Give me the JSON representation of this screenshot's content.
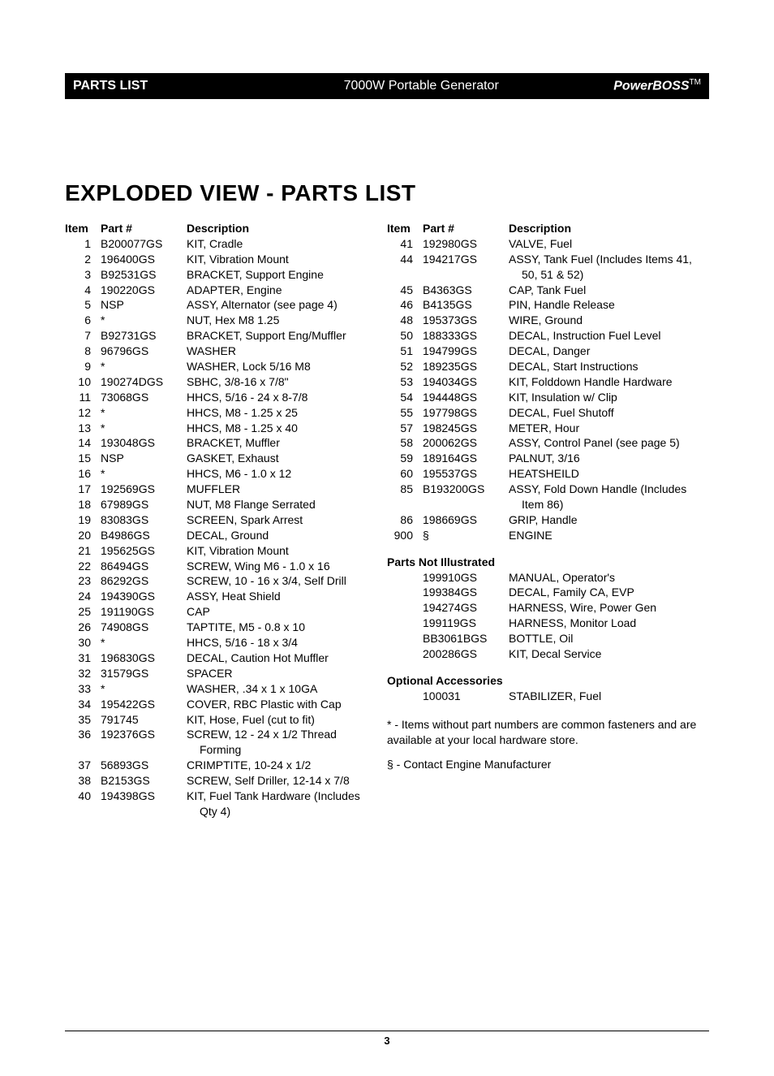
{
  "header": {
    "left": "PARTS LIST",
    "center": "7000W Portable Generator",
    "right": "PowerBOSS",
    "right_tm": "TM"
  },
  "title": "EXPLODED VIEW - PARTS LIST",
  "cols": {
    "item_label": "Item",
    "part_label": "Part #",
    "desc_label": "Description"
  },
  "left_rows": [
    {
      "i": "1",
      "p": "B200077GS",
      "d": "KIT, Cradle"
    },
    {
      "i": "2",
      "p": "196400GS",
      "d": "KIT, Vibration Mount"
    },
    {
      "i": "3",
      "p": "B92531GS",
      "d": "BRACKET, Support Engine"
    },
    {
      "i": "4",
      "p": "190220GS",
      "d": "ADAPTER, Engine"
    },
    {
      "i": "5",
      "p": "NSP",
      "d": "ASSY, Alternator (see page 4)"
    },
    {
      "i": "6",
      "p": "*",
      "d": "NUT, Hex M8 1.25"
    },
    {
      "i": "7",
      "p": "B92731GS",
      "d": "BRACKET, Support Eng/Muffler"
    },
    {
      "i": "8",
      "p": "96796GS",
      "d": "WASHER"
    },
    {
      "i": "9",
      "p": "*",
      "d": "WASHER, Lock 5/16 M8"
    },
    {
      "i": "10",
      "p": "190274DGS",
      "d": "SBHC, 3/8-16 x 7/8\""
    },
    {
      "i": "11",
      "p": "73068GS",
      "d": "HHCS, 5/16 - 24 x 8-7/8"
    },
    {
      "i": "12",
      "p": "*",
      "d": "HHCS, M8 - 1.25 x 25"
    },
    {
      "i": "13",
      "p": "*",
      "d": "HHCS, M8 - 1.25 x 40"
    },
    {
      "i": "14",
      "p": "193048GS",
      "d": "BRACKET, Muffler"
    },
    {
      "i": "15",
      "p": "NSP",
      "d": "GASKET, Exhaust"
    },
    {
      "i": "16",
      "p": "*",
      "d": "HHCS, M6 - 1.0 x 12"
    },
    {
      "i": "17",
      "p": "192569GS",
      "d": "MUFFLER"
    },
    {
      "i": "18",
      "p": "67989GS",
      "d": "NUT, M8 Flange Serrated"
    },
    {
      "i": "19",
      "p": "83083GS",
      "d": "SCREEN, Spark Arrest"
    },
    {
      "i": "20",
      "p": "B4986GS",
      "d": "DECAL, Ground"
    },
    {
      "i": "21",
      "p": "195625GS",
      "d": "KIT, Vibration Mount"
    },
    {
      "i": "22",
      "p": "86494GS",
      "d": "SCREW, Wing M6 - 1.0 x 16"
    },
    {
      "i": "23",
      "p": "86292GS",
      "d": "SCREW, 10 - 16 x 3/4, Self Drill"
    },
    {
      "i": "24",
      "p": "194390GS",
      "d": "ASSY, Heat Shield"
    },
    {
      "i": "25",
      "p": "191190GS",
      "d": "CAP"
    },
    {
      "i": "26",
      "p": "74908GS",
      "d": "TAPTITE, M5 - 0.8 x 10"
    },
    {
      "i": "30",
      "p": "*",
      "d": "HHCS, 5/16 - 18 x 3/4"
    },
    {
      "i": "31",
      "p": "196830GS",
      "d": "DECAL, Caution Hot Muffler"
    },
    {
      "i": "32",
      "p": "31579GS",
      "d": "SPACER"
    },
    {
      "i": "33",
      "p": "*",
      "d": "WASHER, .34 x 1 x 10GA"
    },
    {
      "i": "34",
      "p": "195422GS",
      "d": "COVER, RBC Plastic with Cap"
    },
    {
      "i": "35",
      "p": "791745",
      "d": "KIT, Hose, Fuel (cut to fit)"
    },
    {
      "i": "36",
      "p": "192376GS",
      "d": "SCREW, 12 - 24 x 1/2 Thread",
      "d2": "Forming"
    },
    {
      "i": "37",
      "p": "56893GS",
      "d": "CRIMPTITE, 10-24 x 1/2"
    },
    {
      "i": "38",
      "p": "B2153GS",
      "d": "SCREW, Self Driller, 12-14 x 7/8"
    },
    {
      "i": "40",
      "p": "194398GS",
      "d": "KIT, Fuel Tank Hardware (Includes",
      "d2": "Qty 4)"
    }
  ],
  "right_rows": [
    {
      "i": "41",
      "p": "192980GS",
      "d": "VALVE, Fuel"
    },
    {
      "i": "44",
      "p": "194217GS",
      "d": "ASSY, Tank Fuel (Includes Items 41,",
      "d2": "50, 51 & 52)"
    },
    {
      "i": "45",
      "p": "B4363GS",
      "d": "CAP, Tank Fuel"
    },
    {
      "i": "46",
      "p": "B4135GS",
      "d": "PIN, Handle Release"
    },
    {
      "i": "48",
      "p": "195373GS",
      "d": "WIRE, Ground"
    },
    {
      "i": "50",
      "p": "188333GS",
      "d": "DECAL, Instruction Fuel Level"
    },
    {
      "i": "51",
      "p": "194799GS",
      "d": "DECAL, Danger"
    },
    {
      "i": "52",
      "p": "189235GS",
      "d": "DECAL, Start Instructions"
    },
    {
      "i": "53",
      "p": "194034GS",
      "d": "KIT, Folddown Handle Hardware"
    },
    {
      "i": "54",
      "p": "194448GS",
      "d": "KIT, Insulation w/ Clip"
    },
    {
      "i": "55",
      "p": "197798GS",
      "d": "DECAL, Fuel Shutoff"
    },
    {
      "i": "57",
      "p": "198245GS",
      "d": "METER, Hour"
    },
    {
      "i": "58",
      "p": "200062GS",
      "d": "ASSY, Control Panel (see page 5)"
    },
    {
      "i": "59",
      "p": "189164GS",
      "d": "PALNUT, 3/16"
    },
    {
      "i": "60",
      "p": "195537GS",
      "d": "HEATSHEILD"
    },
    {
      "i": "85",
      "p": "B193200GS",
      "d": "ASSY, Fold Down Handle (Includes",
      "d2": "Item 86)"
    },
    {
      "i": "86",
      "p": "198669GS",
      "d": "GRIP, Handle"
    },
    {
      "i": "900",
      "p": "§",
      "d": "ENGINE"
    }
  ],
  "pni_label": "Parts Not Illustrated",
  "pni_rows": [
    {
      "p": "199910GS",
      "d": "MANUAL, Operator's"
    },
    {
      "p": "199384GS",
      "d": "DECAL, Family CA, EVP"
    },
    {
      "p": "194274GS",
      "d": "HARNESS, Wire, Power Gen"
    },
    {
      "p": "199119GS",
      "d": "HARNESS, Monitor Load"
    },
    {
      "p": "BB3061BGS",
      "d": "BOTTLE, Oil"
    },
    {
      "p": "200286GS",
      "d": "KIT, Decal Service"
    }
  ],
  "acc_label": "Optional Accessories",
  "acc_rows": [
    {
      "p": "100031",
      "d": "STABILIZER, Fuel"
    }
  ],
  "notes": {
    "n1": "* - Items without part numbers are common fasteners and are available at your local hardware store.",
    "n2": "§ - Contact Engine Manufacturer"
  },
  "page_num": "3"
}
